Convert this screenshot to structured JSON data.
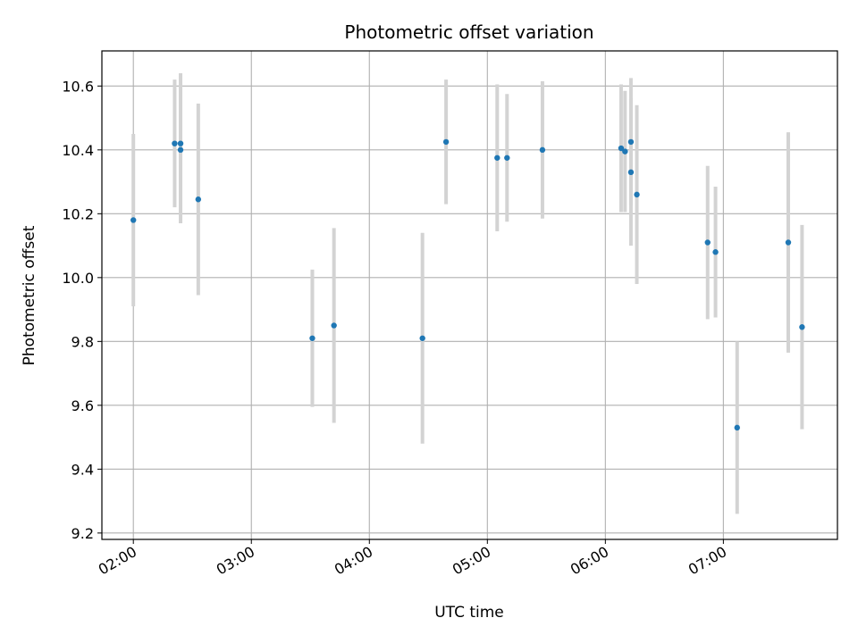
{
  "chart_data": {
    "type": "scatter",
    "title": "Photometric offset variation",
    "xlabel": "UTC time",
    "ylabel": "Photometric offset",
    "xlim": [
      "01:44",
      "07:58"
    ],
    "ylim": [
      9.18,
      10.71
    ],
    "x_ticks": [
      "02:00",
      "03:00",
      "04:00",
      "05:00",
      "06:00",
      "07:00"
    ],
    "y_ticks": [
      "9.2",
      "9.4",
      "9.6",
      "9.8",
      "10.0",
      "10.2",
      "10.4",
      "10.6"
    ],
    "grid": true,
    "colors": {
      "point": "#1f77b4",
      "errorbar": "#d3d3d3",
      "grid": "#b0b0b0"
    },
    "points": [
      {
        "x": "02:00",
        "y": 10.18,
        "err": 0.27
      },
      {
        "x": "02:21",
        "y": 10.42,
        "err": 0.2
      },
      {
        "x": "02:24",
        "y": 10.42,
        "err": 0.22
      },
      {
        "x": "02:24",
        "y": 10.4,
        "err": 0.23
      },
      {
        "x": "02:33",
        "y": 10.245,
        "err": 0.3
      },
      {
        "x": "03:31",
        "y": 9.81,
        "err": 0.215
      },
      {
        "x": "03:42",
        "y": 9.85,
        "err": 0.305
      },
      {
        "x": "04:27",
        "y": 9.81,
        "err": 0.33
      },
      {
        "x": "04:39",
        "y": 10.425,
        "err": 0.195
      },
      {
        "x": "05:05",
        "y": 10.375,
        "err": 0.23
      },
      {
        "x": "05:10",
        "y": 10.375,
        "err": 0.2
      },
      {
        "x": "05:28",
        "y": 10.4,
        "err": 0.215
      },
      {
        "x": "06:08",
        "y": 10.405,
        "err": 0.2
      },
      {
        "x": "06:10",
        "y": 10.395,
        "err": 0.19
      },
      {
        "x": "06:13",
        "y": 10.425,
        "err": 0.2
      },
      {
        "x": "06:13",
        "y": 10.33,
        "err": 0.23
      },
      {
        "x": "06:16",
        "y": 10.26,
        "err": 0.28
      },
      {
        "x": "06:52",
        "y": 10.11,
        "err": 0.24
      },
      {
        "x": "06:56",
        "y": 10.08,
        "err": 0.205
      },
      {
        "x": "07:07",
        "y": 9.53,
        "err": 0.27
      },
      {
        "x": "07:33",
        "y": 10.11,
        "err": 0.345
      },
      {
        "x": "07:40",
        "y": 9.845,
        "err": 0.32
      }
    ]
  }
}
